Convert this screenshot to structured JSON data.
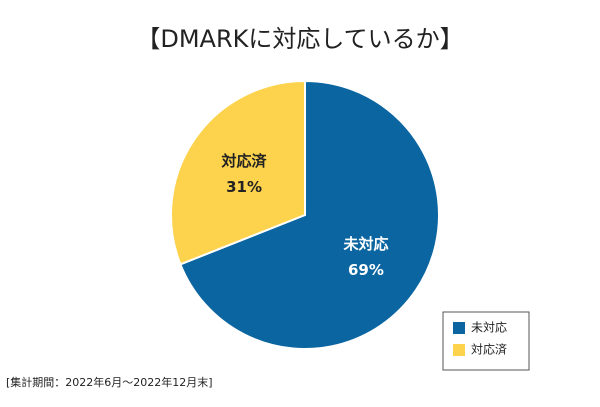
{
  "chart_data": {
    "type": "pie",
    "title": "【DMARKに対応しているか】",
    "categories": [
      "未対応",
      "対応済"
    ],
    "values": [
      69,
      31
    ],
    "value_labels": [
      "69%",
      "31%"
    ],
    "colors": [
      "#0a65a0",
      "#fdd24c"
    ],
    "start_angle": 0,
    "direction": "clockwise",
    "legend": "bottom-right",
    "footnote": "[集計期間：2022年6月～2022年12月末]"
  }
}
